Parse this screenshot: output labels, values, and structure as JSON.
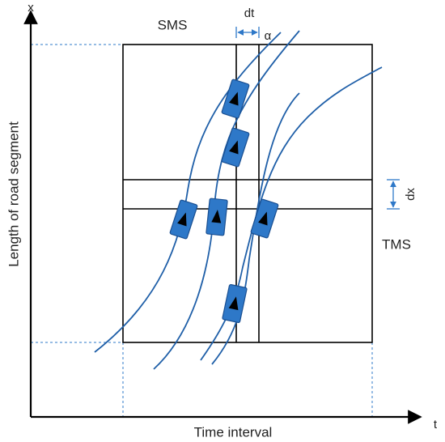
{
  "diagram": {
    "labels": {
      "x_axis": "Time interval",
      "y_axis": "Length of road segment",
      "x_axis_symbol": "t",
      "y_axis_symbol": "x",
      "sms": "SMS",
      "tms": "TMS",
      "dt": "dt",
      "dx": "dx",
      "alpha": "α"
    },
    "colors": {
      "axis": "#000000",
      "grid": "#000000",
      "trajectory": "#1f5fa8",
      "vehicle": "#2e78c8",
      "vehicle_edge": "#1a4f91",
      "arrow": "#000000",
      "dimension": "#2e78c8",
      "projection": "#2e78c8"
    },
    "icons": {
      "vehicle": "car-icon",
      "direction": "triangle-arrow-icon"
    }
  }
}
